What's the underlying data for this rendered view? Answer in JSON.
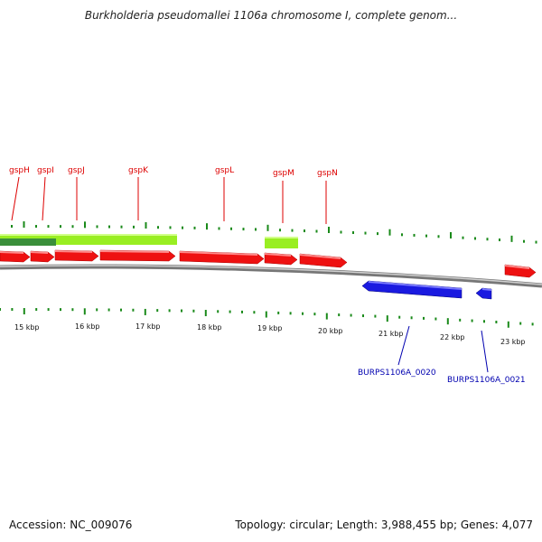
{
  "title": "Burkholderia pseudomallei 1106a chromosome I, complete genom...",
  "footer": {
    "accession": "Accession: NC_009076",
    "summary": "Topology: circular; Length: 3,988,455 bp; Genes: 4,077"
  },
  "colors": {
    "forward_cds": "#ee1111",
    "reverse_cds": "#1a1ae0",
    "gene_bar_light": "#99ee22",
    "gene_bar_dark": "#3a8f3a",
    "tick": "#1a8a1a",
    "backbone": "#9a9a9a",
    "gene_label": "#dd0000",
    "ref_label": "#0000b0"
  },
  "gene_labels": [
    "gspH",
    "gspI",
    "gspJ",
    "gspK",
    "gspL",
    "gspM",
    "gspN"
  ],
  "kbp_labels": [
    "15 kbp",
    "16 kbp",
    "17 kbp",
    "18 kbp",
    "19 kbp",
    "20 kbp",
    "21 kbp",
    "22 kbp",
    "23 kbp"
  ],
  "reverse_labels": [
    "BURPS1106A_0020",
    "BURPS1106A_0021"
  ]
}
